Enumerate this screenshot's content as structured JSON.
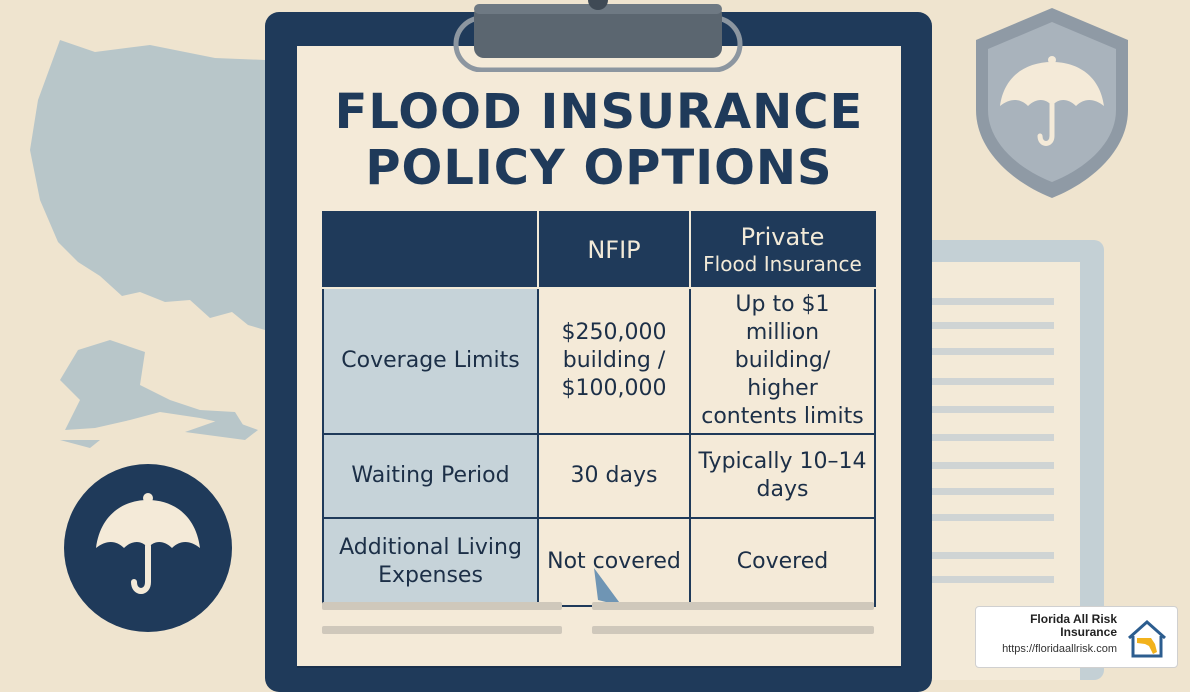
{
  "title": {
    "line1": "FLOOD INSURANCE",
    "line2": "POLICY OPTIONS"
  },
  "table": {
    "headers": {
      "col1": "NFIP",
      "col2_line1": "Private",
      "col2_line2": "Flood Insurance"
    },
    "rows": [
      {
        "label": "Coverage Limits",
        "nfip": "$250,000 building / $100,000",
        "private": "Up to $1 million building/ higher contents limits"
      },
      {
        "label": "Waiting Period",
        "nfip": "30 days",
        "private": "Typically 10–14 days"
      },
      {
        "label": "Additional Living Expenses",
        "nfip": "Not covered",
        "private": "Covered"
      }
    ]
  },
  "badge": {
    "name": "Florida All Risk Insurance",
    "url": "https://floridaallrisk.com"
  },
  "icons": {
    "shield": "shield-umbrella-icon",
    "circle": "umbrella-circle-icon",
    "logo": "florida-house-icon"
  },
  "colors": {
    "navy": "#1f3a5a",
    "paper": "#f4ead8",
    "row_label": "#c6d3d9",
    "background": "#efe4cf"
  }
}
